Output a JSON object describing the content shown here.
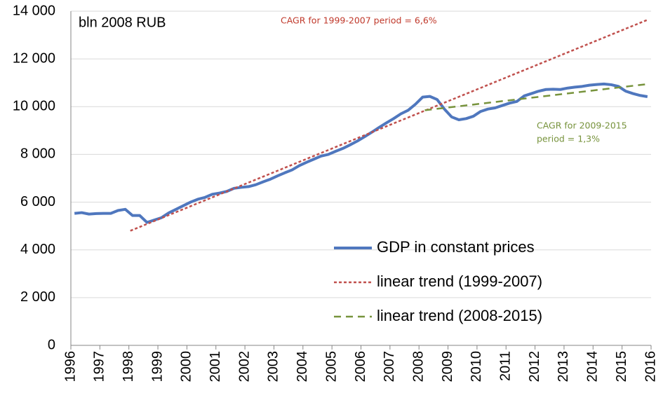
{
  "chart_data": {
    "type": "line",
    "annotations": [
      "bln 2008 RUB",
      "CAGR for 1999-2007 period  = 6,6%",
      [
        "CAGR for 2009-2015",
        "period = 1,3%"
      ]
    ],
    "xlim": [
      1996,
      2016
    ],
    "xticks": [
      1996,
      1997,
      1998,
      1999,
      2000,
      2001,
      2002,
      2003,
      2004,
      2005,
      2006,
      2007,
      2008,
      2009,
      2010,
      2011,
      2012,
      2013,
      2014,
      2015,
      2016
    ],
    "ylim": [
      0,
      14000
    ],
    "yticks": [
      0,
      {
        "value": 2000,
        "label": "2 000"
      },
      {
        "value": 4000,
        "label": "4 000"
      },
      {
        "value": 6000,
        "label": "6 000"
      },
      {
        "value": 8000,
        "label": "8 000"
      },
      {
        "value": 10000,
        "label": "10 000"
      },
      {
        "value": 12000,
        "label": "12 000"
      },
      {
        "value": 14000,
        "label": "14 000"
      }
    ],
    "grid": true,
    "series": [
      {
        "name": "GDP in constant prices",
        "color": "#4f77be",
        "style": "solid",
        "x": [
          1996.125,
          1996.375,
          1996.625,
          1996.875,
          1997.125,
          1997.375,
          1997.625,
          1997.875,
          1998.125,
          1998.375,
          1998.625,
          1998.875,
          1999.125,
          1999.375,
          1999.625,
          1999.875,
          2000.125,
          2000.375,
          2000.625,
          2000.875,
          2001.125,
          2001.375,
          2001.625,
          2001.875,
          2002.125,
          2002.375,
          2002.625,
          2002.875,
          2003.125,
          2003.375,
          2003.625,
          2003.875,
          2004.125,
          2004.375,
          2004.625,
          2004.875,
          2005.125,
          2005.375,
          2005.625,
          2005.875,
          2006.125,
          2006.375,
          2006.625,
          2006.875,
          2007.125,
          2007.375,
          2007.625,
          2007.875,
          2008.125,
          2008.375,
          2008.625,
          2008.875,
          2009.125,
          2009.375,
          2009.625,
          2009.875,
          2010.125,
          2010.375,
          2010.625,
          2010.875,
          2011.125,
          2011.375,
          2011.625,
          2011.875,
          2012.125,
          2012.375,
          2012.625,
          2012.875,
          2013.125,
          2013.375,
          2013.625,
          2013.875,
          2014.125,
          2014.375,
          2014.625,
          2014.875,
          2015.125,
          2015.375,
          2015.625,
          2015.875
        ],
        "values": [
          5530,
          5560,
          5500,
          5520,
          5530,
          5530,
          5650,
          5700,
          5440,
          5440,
          5150,
          5250,
          5350,
          5550,
          5700,
          5850,
          6000,
          6120,
          6200,
          6330,
          6380,
          6450,
          6580,
          6620,
          6650,
          6730,
          6850,
          6960,
          7100,
          7230,
          7350,
          7530,
          7670,
          7800,
          7930,
          8000,
          8130,
          8250,
          8400,
          8560,
          8740,
          8930,
          9130,
          9320,
          9500,
          9700,
          9850,
          10100,
          10400,
          10430,
          10300,
          9900,
          9570,
          9450,
          9500,
          9600,
          9800,
          9900,
          9950,
          10050,
          10150,
          10220,
          10450,
          10550,
          10650,
          10720,
          10730,
          10720,
          10780,
          10820,
          10850,
          10900,
          10930,
          10950,
          10920,
          10850,
          10650,
          10550,
          10470,
          10420
        ]
      },
      {
        "name": "linear trend (1999-2007)",
        "color": "#c0504d",
        "style": "dotted",
        "x": [
          1998.05,
          2015.9
        ],
        "values": [
          4800,
          13650
        ]
      },
      {
        "name": "linear trend (2008-2015)",
        "color": "#77933c",
        "style": "dashed",
        "x": [
          2008.2,
          2015.9
        ],
        "values": [
          9850,
          10950
        ]
      }
    ]
  }
}
